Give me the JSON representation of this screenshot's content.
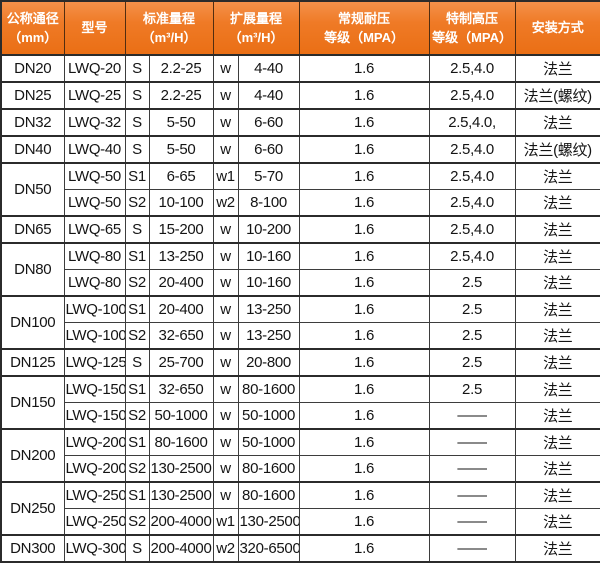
{
  "header": {
    "diameter": {
      "line1": "公称通径",
      "line2": "（mm）"
    },
    "model": "型号",
    "standard_range": {
      "line1": "标准量程",
      "line2": "（m³/H）"
    },
    "extended_range": {
      "line1": "扩展量程",
      "line2": "（m³/H）"
    },
    "normal_pressure": {
      "line1": "常规耐压",
      "line2": "等级（MPA）"
    },
    "high_pressure": {
      "line1": "特制高压",
      "line2": "等级（MPA）"
    },
    "installation": "安装方式"
  },
  "colors": {
    "header_bg": "#ee7420",
    "header_bg_top": "#f4914a",
    "header_text": "#ffffff",
    "header_cell_border": "#512d10",
    "grid_dark": "#2b2b2b",
    "grid_mid": "#3d3d3d",
    "grid_light": "#8c8c8c",
    "body_text": "#141414"
  },
  "rows": [
    {
      "dn": "DN20",
      "dn_rowspan": 1,
      "model": "LWQ-20",
      "std_code": "S",
      "std_range": "2.2-25",
      "ext_code": "w",
      "ext_range": "4-40",
      "normal_mpa": "1.6",
      "high_mpa": "2.5,4.0",
      "install": "法兰"
    },
    {
      "dn": "DN25",
      "dn_rowspan": 1,
      "model": "LWQ-25",
      "std_code": "S",
      "std_range": "2.2-25",
      "ext_code": "w",
      "ext_range": "4-40",
      "normal_mpa": "1.6",
      "high_mpa": "2.5,4.0",
      "install": "法兰(螺纹)"
    },
    {
      "dn": "DN32",
      "dn_rowspan": 1,
      "model": "LWQ-32",
      "std_code": "S",
      "std_range": "5-50",
      "ext_code": "w",
      "ext_range": "6-60",
      "normal_mpa": "1.6",
      "high_mpa": "2.5,4.0,",
      "install": "法兰"
    },
    {
      "dn": "DN40",
      "dn_rowspan": 1,
      "model": "LWQ-40",
      "std_code": "S",
      "std_range": "5-50",
      "ext_code": "w",
      "ext_range": "6-60",
      "normal_mpa": "1.6",
      "high_mpa": "2.5,4.0",
      "install": "法兰(螺纹)"
    },
    {
      "dn": "DN50",
      "dn_rowspan": 2,
      "model": "LWQ-50",
      "std_code": "S1",
      "std_range": "6-65",
      "ext_code": "w1",
      "ext_range": "5-70",
      "normal_mpa": "1.6",
      "high_mpa": "2.5,4.0",
      "install": "法兰"
    },
    {
      "model": "LWQ-50",
      "std_code": "S2",
      "std_range": "10-100",
      "ext_code": "w2",
      "ext_range": "8-100",
      "normal_mpa": "1.6",
      "high_mpa": "2.5,4.0",
      "install": "法兰"
    },
    {
      "dn": "DN65",
      "dn_rowspan": 1,
      "model": "LWQ-65",
      "std_code": "S",
      "std_range": "15-200",
      "ext_code": "w",
      "ext_range": "10-200",
      "normal_mpa": "1.6",
      "high_mpa": "2.5,4.0",
      "install": "法兰"
    },
    {
      "dn": "DN80",
      "dn_rowspan": 2,
      "model": "LWQ-80",
      "std_code": "S1",
      "std_range": "13-250",
      "ext_code": "w",
      "ext_range": "10-160",
      "normal_mpa": "1.6",
      "high_mpa": "2.5,4.0",
      "install": "法兰"
    },
    {
      "model": "LWQ-80",
      "std_code": "S2",
      "std_range": "20-400",
      "ext_code": "w",
      "ext_range": "10-160",
      "normal_mpa": "1.6",
      "high_mpa": "2.5",
      "install": "法兰"
    },
    {
      "dn": "DN100",
      "dn_rowspan": 2,
      "model": "LWQ-100",
      "std_code": "S1",
      "std_range": "20-400",
      "ext_code": "w",
      "ext_range": "13-250",
      "normal_mpa": "1.6",
      "high_mpa": "2.5",
      "install": "法兰"
    },
    {
      "model": "LWQ-100",
      "std_code": "S2",
      "std_range": "32-650",
      "ext_code": "w",
      "ext_range": "13-250",
      "normal_mpa": "1.6",
      "high_mpa": "2.5",
      "install": "法兰"
    },
    {
      "dn": "DN125",
      "dn_rowspan": 1,
      "model": "LWQ-125",
      "std_code": "S",
      "std_range": "25-700",
      "ext_code": "w",
      "ext_range": "20-800",
      "normal_mpa": "1.6",
      "high_mpa": "2.5",
      "install": "法兰"
    },
    {
      "dn": "DN150",
      "dn_rowspan": 2,
      "model": "LWQ-150",
      "std_code": "S1",
      "std_range": "32-650",
      "ext_code": "w",
      "ext_range": "80-1600",
      "normal_mpa": "1.6",
      "high_mpa": "2.5",
      "install": "法兰"
    },
    {
      "model": "LWQ-150",
      "std_code": "S2",
      "std_range": "50-1000",
      "ext_code": "w",
      "ext_range": "50-1000",
      "normal_mpa": "1.6",
      "high_mpa": "——",
      "install": "法兰"
    },
    {
      "dn": "DN200",
      "dn_rowspan": 2,
      "model": "LWQ-200",
      "std_code": "S1",
      "std_range": "80-1600",
      "ext_code": "w",
      "ext_range": "50-1000",
      "normal_mpa": "1.6",
      "high_mpa": "——",
      "install": "法兰"
    },
    {
      "model": "LWQ-200",
      "std_code": "S2",
      "std_range": "130-2500",
      "ext_code": "w",
      "ext_range": "80-1600",
      "normal_mpa": "1.6",
      "high_mpa": "——",
      "install": "法兰"
    },
    {
      "dn": "DN250",
      "dn_rowspan": 2,
      "model": "LWQ-250",
      "std_code": "S1",
      "std_range": "130-2500",
      "ext_code": "w",
      "ext_range": "80-1600",
      "normal_mpa": "1.6",
      "high_mpa": "——",
      "install": "法兰"
    },
    {
      "model": "LWQ-250",
      "std_code": "S2",
      "std_range": "200-4000",
      "ext_code": "w1",
      "ext_range": "130-2500",
      "normal_mpa": "1.6",
      "high_mpa": "——",
      "install": "法兰"
    },
    {
      "dn": "DN300",
      "dn_rowspan": 1,
      "model": "LWQ-300",
      "std_code": "S",
      "std_range": "200-4000",
      "ext_code": "w2",
      "ext_range": "320-6500",
      "normal_mpa": "1.6",
      "high_mpa": "——",
      "install": "法兰"
    }
  ]
}
